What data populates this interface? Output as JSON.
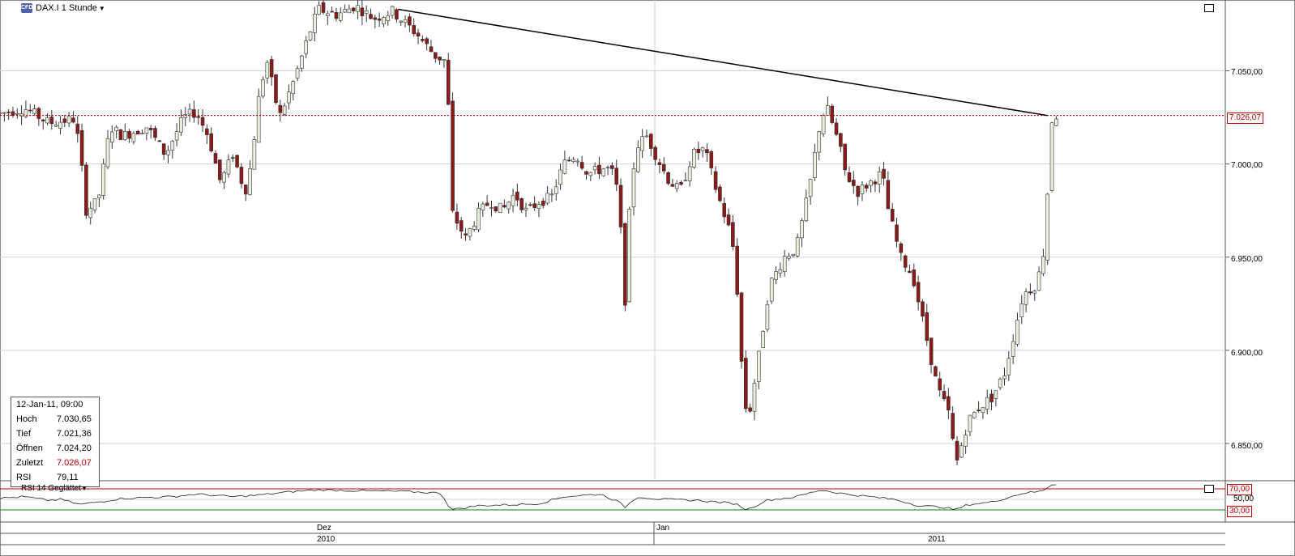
{
  "header": {
    "instrument_label": "DAX.I 1 Stunde",
    "logo_text": "CFD"
  },
  "chart_data": {
    "type": "candlestick",
    "title": "DAX.I 1 Stunde",
    "ylim": [
      6830,
      7088
    ],
    "y_ticks": [
      6850,
      6900,
      6950,
      7000,
      7050
    ],
    "y_tick_labels": [
      "6.850,00",
      "6.900,00",
      "6.950,00",
      "7.000,00",
      "7.050,00"
    ],
    "x_labels_top": [
      "Dez",
      "Jan"
    ],
    "x_labels_bottom": [
      "2010",
      "2011"
    ],
    "last_price": 7026.07,
    "last_price_label": "7.026,07",
    "grid": true,
    "trendline": [
      {
        "x": 0.325,
        "y": 7083
      },
      {
        "x": 0.855,
        "y": 7026
      }
    ],
    "candles_anchors": [
      [
        0,
        7027
      ],
      [
        0.02,
        7030
      ],
      [
        0.04,
        7022
      ],
      [
        0.06,
        7024
      ],
      [
        0.065,
        7010
      ],
      [
        0.07,
        6975
      ],
      [
        0.08,
        6980
      ],
      [
        0.09,
        7020
      ],
      [
        0.1,
        7015
      ],
      [
        0.12,
        7020
      ],
      [
        0.135,
        7005
      ],
      [
        0.15,
        7025
      ],
      [
        0.16,
        7028
      ],
      [
        0.17,
        7015
      ],
      [
        0.18,
        6990
      ],
      [
        0.19,
        7005
      ],
      [
        0.2,
        6985
      ],
      [
        0.205,
        7000
      ],
      [
        0.212,
        7040
      ],
      [
        0.218,
        7055
      ],
      [
        0.228,
        7025
      ],
      [
        0.24,
        7045
      ],
      [
        0.255,
        7075
      ],
      [
        0.26,
        7083
      ],
      [
        0.275,
        7080
      ],
      [
        0.29,
        7085
      ],
      [
        0.305,
        7078
      ],
      [
        0.32,
        7082
      ],
      [
        0.34,
        7070
      ],
      [
        0.355,
        7058
      ],
      [
        0.365,
        7055
      ],
      [
        0.368,
        6975
      ],
      [
        0.38,
        6960
      ],
      [
        0.39,
        6973
      ],
      [
        0.4,
        6980
      ],
      [
        0.41,
        6975
      ],
      [
        0.42,
        6984
      ],
      [
        0.43,
        6974
      ],
      [
        0.44,
        6980
      ],
      [
        0.45,
        6982
      ],
      [
        0.46,
        7000
      ],
      [
        0.47,
        7005
      ],
      [
        0.48,
        6995
      ],
      [
        0.495,
        6998
      ],
      [
        0.5,
        6995
      ],
      [
        0.505,
        6983
      ],
      [
        0.51,
        6925
      ],
      [
        0.515,
        6990
      ],
      [
        0.52,
        7010
      ],
      [
        0.528,
        7015
      ],
      [
        0.535,
        7005
      ],
      [
        0.545,
        6992
      ],
      [
        0.555,
        6985
      ],
      [
        0.565,
        7005
      ],
      [
        0.575,
        7008
      ],
      [
        0.585,
        6985
      ],
      [
        0.595,
        6965
      ],
      [
        0.6,
        6950
      ],
      [
        0.605,
        6895
      ],
      [
        0.61,
        6860
      ],
      [
        0.62,
        6900
      ],
      [
        0.628,
        6935
      ],
      [
        0.64,
        6950
      ],
      [
        0.65,
        6955
      ],
      [
        0.66,
        6985
      ],
      [
        0.67,
        7025
      ],
      [
        0.675,
        7030
      ],
      [
        0.685,
        7010
      ],
      [
        0.69,
        6995
      ],
      [
        0.7,
        6985
      ],
      [
        0.71,
        6990
      ],
      [
        0.72,
        6995
      ],
      [
        0.725,
        6975
      ],
      [
        0.735,
        6950
      ],
      [
        0.745,
        6940
      ],
      [
        0.755,
        6910
      ],
      [
        0.765,
        6880
      ],
      [
        0.775,
        6865
      ],
      [
        0.78,
        6838
      ],
      [
        0.79,
        6862
      ],
      [
        0.8,
        6870
      ],
      [
        0.81,
        6875
      ],
      [
        0.82,
        6888
      ],
      [
        0.835,
        6930
      ],
      [
        0.845,
        6935
      ],
      [
        0.85,
        6945
      ],
      [
        0.853,
        6960
      ],
      [
        0.858,
        7023
      ],
      [
        0.862,
        7026
      ]
    ]
  },
  "info_box": {
    "date": "12-Jan-11, 09:00",
    "rows": [
      {
        "label": "Hoch",
        "value": "7.030,65",
        "red": false
      },
      {
        "label": "Tief",
        "value": "7.021,36",
        "red": false
      },
      {
        "label": "Öffnen",
        "value": "7.024,20",
        "red": false
      },
      {
        "label": "Zuletzt",
        "value": "7.026,07",
        "red": true
      },
      {
        "label": "RSI",
        "value": "79,11",
        "red": false
      }
    ]
  },
  "rsi_panel": {
    "label": "RSI 14 Geglättet",
    "levels": {
      "upper": "70,00",
      "mid": "50,00",
      "lower": "30,00"
    },
    "colors": {
      "upper": "#c00000",
      "lower": "#008000"
    },
    "series": [
      [
        0,
        52
      ],
      [
        0.02,
        55
      ],
      [
        0.04,
        48
      ],
      [
        0.05,
        50
      ],
      [
        0.065,
        40
      ],
      [
        0.08,
        45
      ],
      [
        0.1,
        52
      ],
      [
        0.14,
        55
      ],
      [
        0.16,
        60
      ],
      [
        0.19,
        55
      ],
      [
        0.21,
        58
      ],
      [
        0.24,
        65
      ],
      [
        0.26,
        68
      ],
      [
        0.3,
        66
      ],
      [
        0.33,
        65
      ],
      [
        0.36,
        62
      ],
      [
        0.368,
        30
      ],
      [
        0.39,
        38
      ],
      [
        0.42,
        40
      ],
      [
        0.44,
        42
      ],
      [
        0.46,
        55
      ],
      [
        0.49,
        60
      ],
      [
        0.505,
        45
      ],
      [
        0.51,
        35
      ],
      [
        0.52,
        55
      ],
      [
        0.54,
        50
      ],
      [
        0.57,
        48
      ],
      [
        0.6,
        42
      ],
      [
        0.61,
        30
      ],
      [
        0.625,
        48
      ],
      [
        0.65,
        55
      ],
      [
        0.67,
        68
      ],
      [
        0.69,
        60
      ],
      [
        0.71,
        55
      ],
      [
        0.73,
        50
      ],
      [
        0.75,
        38
      ],
      [
        0.77,
        35
      ],
      [
        0.78,
        30
      ],
      [
        0.79,
        40
      ],
      [
        0.81,
        45
      ],
      [
        0.835,
        62
      ],
      [
        0.85,
        65
      ],
      [
        0.858,
        78
      ],
      [
        0.862,
        79
      ]
    ]
  },
  "axis_tags": {
    "last_price_tag": "7.026,07",
    "rsi_upper_tag": "70,00",
    "rsi_mid_tag": "50,00",
    "rsi_lower_tag": "30,00"
  },
  "icons": [
    "maximize-icon",
    "close-icon",
    "dropdown-caret-icon"
  ]
}
